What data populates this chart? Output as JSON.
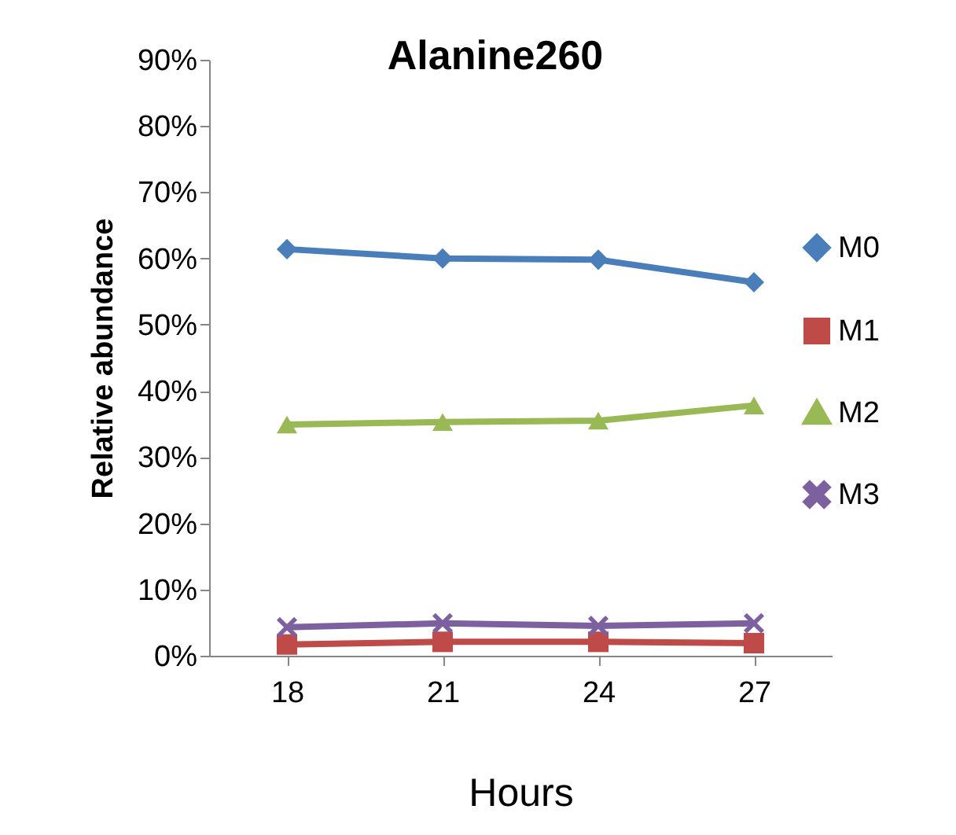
{
  "chart_data": {
    "type": "line",
    "title": "Alanine260",
    "xlabel": "Hours",
    "ylabel": "Relative abundance",
    "categories": [
      "18",
      "21",
      "24",
      "27"
    ],
    "ylim": [
      0,
      90
    ],
    "yticks": [
      {
        "value": 0,
        "label": "0%"
      },
      {
        "value": 10,
        "label": "10%"
      },
      {
        "value": 20,
        "label": "20%"
      },
      {
        "value": 30,
        "label": "30%"
      },
      {
        "value": 40,
        "label": "40%"
      },
      {
        "value": 50,
        "label": "50%"
      },
      {
        "value": 60,
        "label": "60%"
      },
      {
        "value": 70,
        "label": "70%"
      },
      {
        "value": 80,
        "label": "80%"
      },
      {
        "value": 90,
        "label": "90%"
      }
    ],
    "grid": false,
    "legend": "right",
    "series": [
      {
        "name": "M0",
        "color": "#4a7ebb",
        "marker": "diamond",
        "values": [
          61.4,
          60.0,
          59.8,
          56.4
        ]
      },
      {
        "name": "M1",
        "color": "#be4b48",
        "marker": "square",
        "values": [
          1.7,
          2.1,
          2.1,
          1.9
        ]
      },
      {
        "name": "M2",
        "color": "#98b954",
        "marker": "triangle",
        "values": [
          34.9,
          35.3,
          35.5,
          37.8
        ]
      },
      {
        "name": "M3",
        "color": "#7d60a0",
        "marker": "cross",
        "values": [
          4.3,
          4.9,
          4.5,
          4.9
        ]
      }
    ]
  }
}
